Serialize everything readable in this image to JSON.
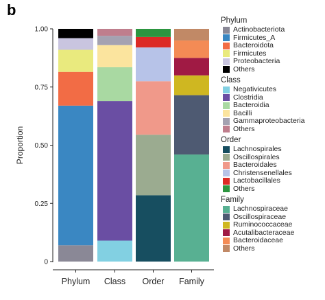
{
  "panel_label": "b",
  "chart_data": {
    "type": "bar",
    "stacked": true,
    "categories": [
      "Phylum",
      "Class",
      "Order",
      "Family"
    ],
    "ylabel": "Proportion",
    "xlabel": "",
    "ylim": [
      0,
      1
    ],
    "yticks": [
      "0",
      "0.25",
      "0.50",
      "0.75",
      "1.00"
    ],
    "ytick_values": [
      0,
      0.25,
      0.5,
      0.75,
      1.0
    ],
    "bars": [
      {
        "category": "Phylum",
        "legend_group": "Phylum",
        "segments": [
          {
            "name": "Actinobacteriota",
            "value": 0.07,
            "color": "#8a8896"
          },
          {
            "name": "Firmicutes_A",
            "value": 0.6,
            "color": "#3a87c2"
          },
          {
            "name": "Bacteroidota",
            "value": 0.145,
            "color": "#f26c45"
          },
          {
            "name": "Firmicutes",
            "value": 0.095,
            "color": "#e9ea7e"
          },
          {
            "name": "Proteobacteria",
            "value": 0.05,
            "color": "#c9c5e0"
          },
          {
            "name": "Others",
            "value": 0.04,
            "color": "#000000"
          }
        ]
      },
      {
        "category": "Class",
        "legend_group": "Class",
        "segments": [
          {
            "name": "Negativicutes",
            "value": 0.09,
            "color": "#82d0e2"
          },
          {
            "name": "Clostridia",
            "value": 0.6,
            "color": "#6a4ea3"
          },
          {
            "name": "Bacteroidia",
            "value": 0.145,
            "color": "#a9d9a2"
          },
          {
            "name": "Bacilli",
            "value": 0.095,
            "color": "#fbe49e"
          },
          {
            "name": "Gammaproteobacteria",
            "value": 0.04,
            "color": "#a4a2b1"
          },
          {
            "name": "Others",
            "value": 0.03,
            "color": "#bf7e8d"
          }
        ]
      },
      {
        "category": "Order",
        "legend_group": "Order",
        "segments": [
          {
            "name": "Lachnospirales",
            "value": 0.285,
            "color": "#174e60"
          },
          {
            "name": "Oscillospirales",
            "value": 0.26,
            "color": "#9bab90"
          },
          {
            "name": "Bacteroidales",
            "value": 0.23,
            "color": "#f0998a"
          },
          {
            "name": "Christensenellales",
            "value": 0.145,
            "color": "#b7c3e8"
          },
          {
            "name": "Lactobacillales",
            "value": 0.045,
            "color": "#dc2a25"
          },
          {
            "name": "Others",
            "value": 0.035,
            "color": "#2c9540"
          }
        ]
      },
      {
        "category": "Family",
        "legend_group": "Family",
        "segments": [
          {
            "name": "Lachnospiraceae",
            "value": 0.46,
            "color": "#58b092"
          },
          {
            "name": "Oscillospiraceae",
            "value": 0.255,
            "color": "#4e5a72"
          },
          {
            "name": "Ruminococcaceae",
            "value": 0.085,
            "color": "#cfb721"
          },
          {
            "name": "Acutalibacteraceae",
            "value": 0.075,
            "color": "#a01a44"
          },
          {
            "name": "Bacteroidaceae",
            "value": 0.075,
            "color": "#f48b55"
          },
          {
            "name": "Others",
            "value": 0.05,
            "color": "#c18966"
          }
        ]
      }
    ],
    "legend_placement": "right",
    "grid": false
  }
}
